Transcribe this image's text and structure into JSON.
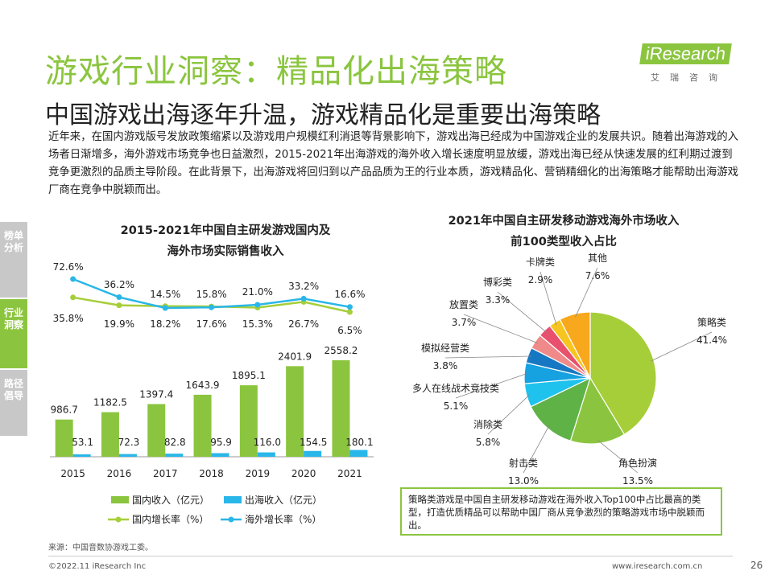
{
  "header": {
    "title": "游戏行业洞察：精品化出海策略",
    "subtitle": "中国游戏出海逐年升温，游戏精品化是重要出海策略",
    "logo_text": "iResearch",
    "logo_cn": "艾瑞咨询"
  },
  "intro": "近年来，在国内游戏版号发放政策缩紧以及游戏用户规模红利消退等背景影响下，游戏出海已经成为中国游戏企业的发展共识。随着出海游戏的入场者日渐增多，海外游戏市场竞争也日益激烈，2015-2021年出海游戏的海外收入增长速度明显放缓，游戏出海已经从快速发展的红利期过渡到竞争更激烈的品质主导阶段。在此背景下，出海游戏将回归到以产品品质为王的行业本质，游戏精品化、营销精细化的出海策略才能帮助出海游戏厂商在竞争中脱颖而出。",
  "side_tabs": [
    {
      "label": "榜单分析",
      "color": "#c8c8c8"
    },
    {
      "label": "行业洞察",
      "color": "#8bc53f"
    },
    {
      "label": "路径倡导",
      "color": "#c8c8c8"
    }
  ],
  "chart_data": [
    {
      "type": "bar+line",
      "title_line1": "2015-2021年中国自主研发游戏国内及",
      "title_line2": "海外市场实际销售收入",
      "categories": [
        "2015",
        "2016",
        "2017",
        "2018",
        "2019",
        "2020",
        "2021"
      ],
      "bar_series": [
        {
          "name": "国内收入（亿元）",
          "color": "#8bc53f",
          "values": [
            986.7,
            1182.5,
            1397.4,
            1643.9,
            1895.1,
            2401.9,
            2558.2
          ],
          "labels": [
            "986.7",
            "1182.5",
            "1397.4",
            "1643.9",
            "1895.1",
            "2401.9",
            "2558.2"
          ]
        },
        {
          "name": "出海收入（亿元）",
          "color": "#29b6e8",
          "values": [
            53.1,
            72.3,
            82.8,
            95.9,
            116.0,
            154.5,
            180.1
          ],
          "labels": [
            "53.1",
            "72.3",
            "82.8",
            "95.9",
            "116.0",
            "154.5",
            "180.1"
          ]
        }
      ],
      "line_series": [
        {
          "name": "国内增长率（%）",
          "color": "#a6ce39",
          "values": [
            35.8,
            19.9,
            18.2,
            17.6,
            15.3,
            26.7,
            6.5
          ],
          "labels": [
            "35.8%",
            "19.9%",
            "18.2%",
            "17.6%",
            "15.3%",
            "26.7%",
            "6.5%"
          ]
        },
        {
          "name": "海外增长率（%）",
          "color": "#29b6e8",
          "values": [
            72.6,
            36.2,
            14.5,
            15.8,
            21.0,
            33.2,
            16.6
          ],
          "labels": [
            "72.6%",
            "36.2%",
            "14.5%",
            "15.8%",
            "21.0%",
            "33.2%",
            "16.6%"
          ]
        }
      ]
    },
    {
      "type": "pie",
      "title_line1": "2021年中国自主研发移动游戏海外市场收入",
      "title_line2": "前100类型收入占比",
      "slices": [
        {
          "name": "策略类",
          "value": 41.4,
          "label": "41.4%",
          "color": "#a6ce39"
        },
        {
          "name": "角色扮演",
          "value": 13.5,
          "label": "13.5%",
          "color": "#8bc53f"
        },
        {
          "name": "射击类",
          "value": 13.0,
          "label": "13.0%",
          "color": "#5fb246"
        },
        {
          "name": "消除类",
          "value": 5.8,
          "label": "5.8%",
          "color": "#1fc2ec"
        },
        {
          "name": "多人在线战术竞技类",
          "value": 5.1,
          "label": "5.1%",
          "color": "#16a1e0"
        },
        {
          "name": "模拟经营类",
          "value": 3.8,
          "label": "3.8%",
          "color": "#1678c2"
        },
        {
          "name": "放置类",
          "value": 3.7,
          "label": "3.7%",
          "color": "#f08a8a"
        },
        {
          "name": "博彩类",
          "value": 3.3,
          "label": "3.3%",
          "color": "#e8506e"
        },
        {
          "name": "卡牌类",
          "value": 2.9,
          "label": "2.9%",
          "color": "#f6c51f"
        },
        {
          "name": "其他",
          "value": 7.6,
          "label": "7.6%",
          "color": "#f7a81c"
        }
      ]
    }
  ],
  "note": "策略类游戏是中国自主研发移动游戏在海外收入Top100中占比最高的类型，打造优质精品可以帮助中国厂商从竞争激烈的策略游戏市场中脱颖而出。",
  "footer": {
    "source": "来源：中国音数协游戏工委。",
    "copyright": "©2022.11 iResearch Inc",
    "site": "www.iresearch.com.cn",
    "page": "26"
  }
}
